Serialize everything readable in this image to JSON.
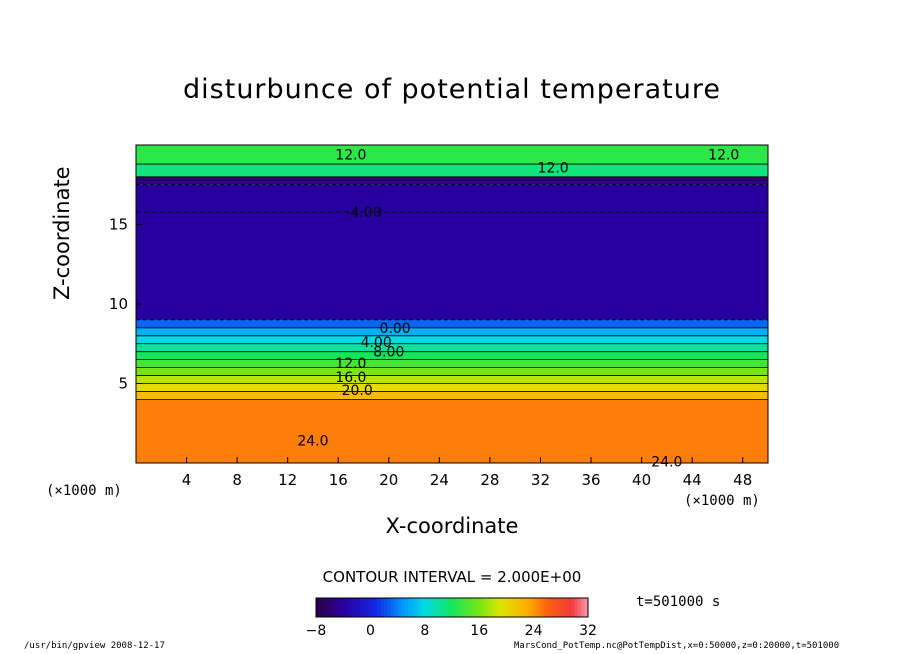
{
  "chart_data": {
    "type": "heatmap",
    "title": "disturbunce of potential temperature",
    "xlabel": "X-coordinate",
    "ylabel": "Z-coordinate",
    "x_unit": "(×1000 m)",
    "y_unit": "(×1000 m)",
    "xlim": [
      0,
      50
    ],
    "ylim": [
      0,
      20
    ],
    "x_ticks": [
      4,
      8,
      12,
      16,
      20,
      24,
      28,
      32,
      36,
      40,
      44,
      48
    ],
    "y_ticks": [
      5,
      10,
      15
    ],
    "contour_interval_text": "CONTOUR INTERVAL = 2.000E+00",
    "colorbar": {
      "min": -8,
      "max": 32,
      "ticks": [
        -8,
        0,
        8,
        16,
        24,
        32
      ]
    },
    "time_label": "t=501000 s",
    "layers": [
      {
        "z_from": 0,
        "z_to": 4.0,
        "value": 25
      },
      {
        "z_from": 4.0,
        "z_to": 4.5,
        "value": 22
      },
      {
        "z_from": 4.5,
        "z_to": 5.0,
        "value": 20
      },
      {
        "z_from": 5.0,
        "z_to": 5.5,
        "value": 18
      },
      {
        "z_from": 5.5,
        "z_to": 6.0,
        "value": 16
      },
      {
        "z_from": 6.0,
        "z_to": 6.5,
        "value": 14
      },
      {
        "z_from": 6.5,
        "z_to": 7.0,
        "value": 12
      },
      {
        "z_from": 7.0,
        "z_to": 7.5,
        "value": 10
      },
      {
        "z_from": 7.5,
        "z_to": 8.0,
        "value": 8
      },
      {
        "z_from": 8.0,
        "z_to": 8.5,
        "value": 6
      },
      {
        "z_from": 8.5,
        "z_to": 9.0,
        "value": 3
      },
      {
        "z_from": 9.0,
        "z_to": 17.5,
        "value": -4
      },
      {
        "z_from": 17.5,
        "z_to": 18.0,
        "value": -6
      },
      {
        "z_from": 18.0,
        "z_to": 18.8,
        "value": 11
      },
      {
        "z_from": 18.8,
        "z_to": 20.0,
        "value": 13
      }
    ],
    "contour_labels": [
      {
        "x": 17.0,
        "z": 19.4,
        "text": "12.0"
      },
      {
        "x": 46.5,
        "z": 19.4,
        "text": "12.0"
      },
      {
        "x": 33.0,
        "z": 18.6,
        "text": "12.0"
      },
      {
        "x": 18.0,
        "z": 15.8,
        "text": "-4.00"
      },
      {
        "x": 20.5,
        "z": 8.5,
        "text": "0.00"
      },
      {
        "x": 19.0,
        "z": 7.6,
        "text": "4.00"
      },
      {
        "x": 20.0,
        "z": 7.0,
        "text": "8.00"
      },
      {
        "x": 17.0,
        "z": 6.3,
        "text": "12.0"
      },
      {
        "x": 17.0,
        "z": 5.4,
        "text": "16.0"
      },
      {
        "x": 17.5,
        "z": 4.6,
        "text": "20.0"
      },
      {
        "x": 14.0,
        "z": 1.4,
        "text": "24.0"
      },
      {
        "x": 42.0,
        "z": 0.1,
        "text": "24.0"
      }
    ]
  },
  "footer": {
    "left_text": "/usr/bin/gpview  2008-12-17",
    "right_text": "MarsCond_PotTemp.nc@PotTempDist,x=0:50000,z=0:20000,t=501000"
  }
}
